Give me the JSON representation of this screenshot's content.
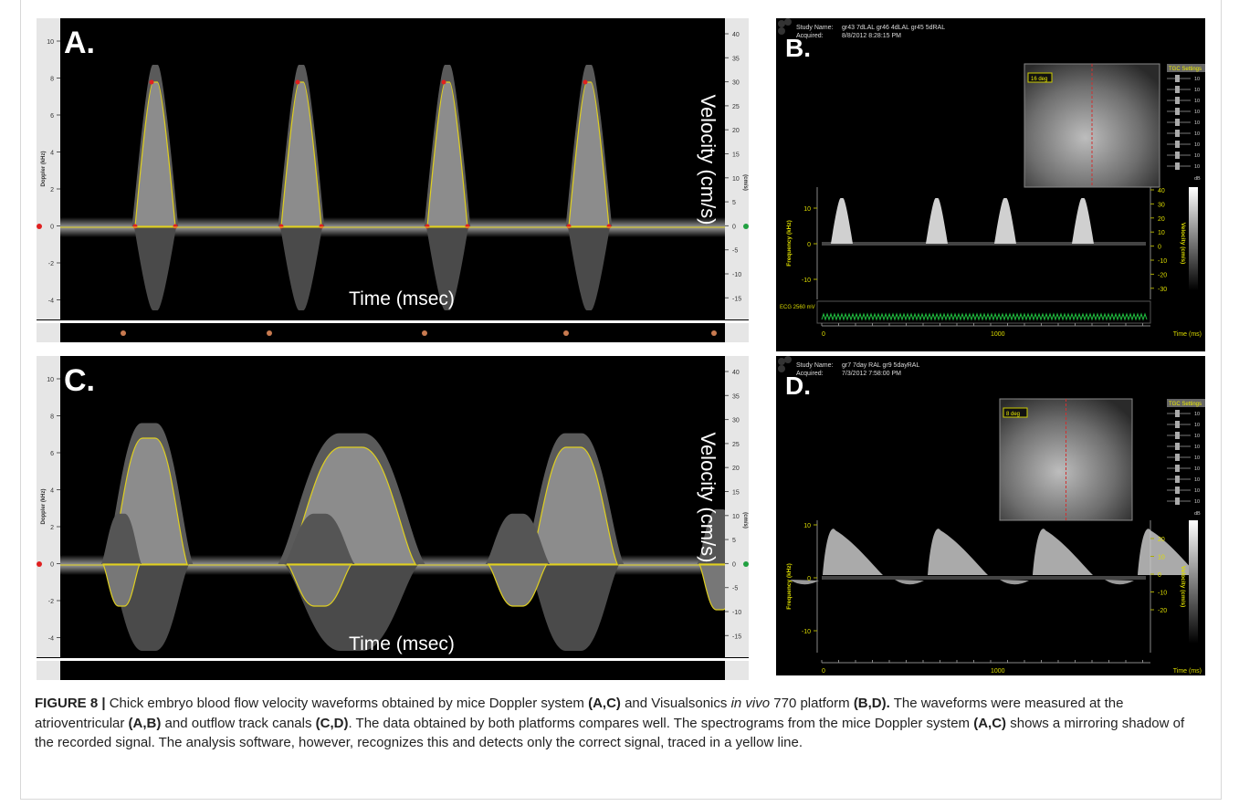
{
  "panels": [
    {
      "label": "A.",
      "left_axis": "Doppler (kHz)",
      "left_ticks": [
        "10",
        "8",
        "6",
        "4",
        "2",
        "0",
        "-2",
        "-4"
      ],
      "right_axis": "(cm/s)",
      "right_ticks": [
        "40",
        "35",
        "30",
        "25",
        "20",
        "15",
        "10",
        "5",
        "0",
        "-5",
        "-10",
        "-15"
      ],
      "velocity_label": "Velocity (cm/s)",
      "time_label": "Time (msec)"
    },
    {
      "label": "B.",
      "study_name_label": "Study Name:",
      "study_name": "gr43 7dLAL gr46 4dLAL gr45 5dRAL",
      "acquired_label": "Acquired:",
      "acquired": "8/8/2012 8:28:15 PM",
      "angle": "16 deg",
      "tgc_title": "TGC Settings",
      "tgc_values": [
        "10",
        "10",
        "10",
        "10",
        "10",
        "10",
        "10",
        "10",
        "10"
      ],
      "tgc_unit": "dB",
      "left_axis": "Frequency (kHz)",
      "left_ticks": [
        "10",
        "0",
        "-10"
      ],
      "right_axis": "Velocity (cm/s)",
      "right_ticks": [
        "40",
        "30",
        "20",
        "10",
        "0",
        "-10",
        "-20",
        "-30"
      ],
      "ecg_label": "ECG 2560 mV",
      "x_ticks": [
        "0",
        "1000"
      ],
      "x_axis": "Time (ms)"
    },
    {
      "label": "C.",
      "left_axis": "Doppler (kHz)",
      "left_ticks": [
        "10",
        "8",
        "6",
        "4",
        "2",
        "0",
        "-2",
        "-4"
      ],
      "right_axis": "(cm/s)",
      "right_ticks": [
        "40",
        "35",
        "30",
        "25",
        "20",
        "15",
        "10",
        "5",
        "0",
        "-5",
        "-10",
        "-15"
      ],
      "velocity_label": "Velocity (cm/s)",
      "time_label": "Time (msec)"
    },
    {
      "label": "D.",
      "study_name_label": "Study Name:",
      "study_name": "gr7 7day RAL gr9 5dayRAL",
      "acquired_label": "Acquired:",
      "acquired": "7/3/2012 7:58:00 PM",
      "angle": "8 deg",
      "tgc_title": "TGC Settings",
      "tgc_values": [
        "10",
        "10",
        "10",
        "10",
        "10",
        "10",
        "10",
        "10",
        "10"
      ],
      "tgc_unit": "dB",
      "left_axis": "Frequency (kHz)",
      "left_ticks": [
        "10",
        "0",
        "-10"
      ],
      "right_axis": "Velocity (cm/s)",
      "right_ticks": [
        "20",
        "10",
        "0",
        "-10",
        "-20"
      ],
      "x_ticks": [
        "0",
        "1000"
      ],
      "x_axis": "Time (ms)"
    }
  ],
  "caption": [
    "FIGURE 8 |",
    " Chick embryo blood flow velocity waveforms obtained by mice Doppler system ",
    "(A,C)",
    " and Visualsonics ",
    "in vivo",
    " 770 platform ",
    "(B,D).",
    " The waveforms were measured at the atrioventricular ",
    "(A,B)",
    " and outflow track canals ",
    "(C,D)",
    ". The data obtained by both platforms compares well. The spectrograms from the mice Doppler system ",
    "(A,C)",
    " shows a mirroring shadow of the recorded signal. The analysis software, however, recognizes this and detects only the correct signal, traced in a yellow line."
  ]
}
